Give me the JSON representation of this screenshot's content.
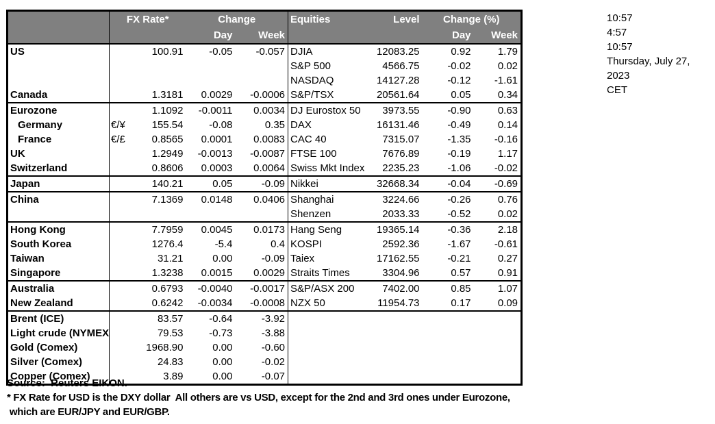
{
  "colors": {
    "header_bg": "#808080",
    "header_text": "#ffffff",
    "border": "#000000",
    "text": "#000000",
    "background": "#ffffff"
  },
  "table_header": {
    "fx_rate": "FX Rate*",
    "fx_change": "Change",
    "fx_day": "Day",
    "fx_week": "Week",
    "equities": "Equities",
    "level": "Level",
    "eq_change": "Change (%)",
    "eq_day": "Day",
    "eq_week": "Week"
  },
  "groups": [
    {
      "rows": [
        {
          "fx_label": "US",
          "fx_pair": "",
          "fx_rate": "100.91",
          "fx_day": "-0.05",
          "fx_week": "-0.057",
          "eq_label": "DJIA",
          "eq_level": "12083.25",
          "eq_day": "0.92",
          "eq_week": "1.79"
        },
        {
          "fx_label": "",
          "fx_pair": "",
          "fx_rate": "",
          "fx_day": "",
          "fx_week": "",
          "eq_label": "S&P 500",
          "eq_level": "4566.75",
          "eq_day": "-0.02",
          "eq_week": "0.02"
        },
        {
          "fx_label": "",
          "fx_pair": "",
          "fx_rate": "",
          "fx_day": "",
          "fx_week": "",
          "eq_label": "NASDAQ",
          "eq_level": "14127.28",
          "eq_day": "-0.12",
          "eq_week": "-1.61"
        },
        {
          "fx_label": "Canada",
          "fx_pair": "",
          "fx_rate": "1.3181",
          "fx_day": "0.0029",
          "fx_week": "-0.0006",
          "eq_label": "S&P/TSX",
          "eq_level": "20561.64",
          "eq_day": "0.05",
          "eq_week": "0.34"
        }
      ]
    },
    {
      "rows": [
        {
          "fx_label": "Eurozone",
          "fx_pair": "",
          "fx_rate": "1.1092",
          "fx_day": "-0.0011",
          "fx_week": "0.0034",
          "eq_label": "DJ Eurostox 50",
          "eq_level": "3973.55",
          "eq_day": "-0.90",
          "eq_week": "0.63"
        },
        {
          "fx_label": "Germany",
          "fx_indent": true,
          "fx_pair": "€/¥",
          "fx_rate": "155.54",
          "fx_day": "-0.08",
          "fx_week": "0.35",
          "eq_label": "DAX",
          "eq_level": "16131.46",
          "eq_day": "-0.49",
          "eq_week": "0.14"
        },
        {
          "fx_label": "France",
          "fx_indent": true,
          "fx_pair": "€/£",
          "fx_rate": "0.8565",
          "fx_day": "0.0001",
          "fx_week": "0.0083",
          "eq_label": "CAC 40",
          "eq_level": "7315.07",
          "eq_day": "-1.35",
          "eq_week": "-0.16"
        },
        {
          "fx_label": "UK",
          "fx_pair": "",
          "fx_rate": "1.2949",
          "fx_day": "-0.0013",
          "fx_week": "-0.0087",
          "eq_label": "FTSE 100",
          "eq_level": "7676.89",
          "eq_day": "-0.19",
          "eq_week": "1.17"
        },
        {
          "fx_label": "Switzerland",
          "fx_pair": "",
          "fx_rate": "0.8606",
          "fx_day": "0.0003",
          "fx_week": "0.0064",
          "eq_label": "Swiss Mkt Index",
          "eq_level": "2235.23",
          "eq_day": "-1.06",
          "eq_week": "-0.02"
        }
      ]
    },
    {
      "rows": [
        {
          "fx_label": "Japan",
          "fx_pair": "",
          "fx_rate": "140.21",
          "fx_day": "0.05",
          "fx_week": "-0.09",
          "eq_label": "Nikkei",
          "eq_level": "32668.34",
          "eq_day": "-0.04",
          "eq_week": "-0.69"
        }
      ]
    },
    {
      "rows": [
        {
          "fx_label": "China",
          "fx_pair": "",
          "fx_rate": "7.1369",
          "fx_day": "0.0148",
          "fx_week": "0.0406",
          "eq_label": "Shanghai",
          "eq_level": "3224.66",
          "eq_day": "-0.26",
          "eq_week": "0.76"
        },
        {
          "fx_label": "",
          "fx_pair": "",
          "fx_rate": "",
          "fx_day": "",
          "fx_week": "",
          "eq_label": "Shenzen",
          "eq_level": "2033.33",
          "eq_day": "-0.52",
          "eq_week": "0.02"
        }
      ]
    },
    {
      "rows": [
        {
          "fx_label": "Hong Kong",
          "fx_pair": "",
          "fx_rate": "7.7959",
          "fx_day": "0.0045",
          "fx_week": "0.0173",
          "eq_label": "Hang Seng",
          "eq_level": "19365.14",
          "eq_day": "-0.36",
          "eq_week": "2.18"
        },
        {
          "fx_label": "South Korea",
          "fx_pair": "",
          "fx_rate": "1276.4",
          "fx_day": "-5.4",
          "fx_week": "0.4",
          "eq_label": "KOSPI",
          "eq_level": "2592.36",
          "eq_day": "-1.67",
          "eq_week": "-0.61"
        },
        {
          "fx_label": "Taiwan",
          "fx_pair": "",
          "fx_rate": "31.21",
          "fx_day": "0.00",
          "fx_week": "-0.09",
          "eq_label": "Taiex",
          "eq_level": "17162.55",
          "eq_day": "-0.21",
          "eq_week": "0.27"
        },
        {
          "fx_label": "Singapore",
          "fx_pair": "",
          "fx_rate": "1.3238",
          "fx_day": "0.0015",
          "fx_week": "0.0029",
          "eq_label": "Straits Times",
          "eq_level": "3304.96",
          "eq_day": "0.57",
          "eq_week": "0.91"
        }
      ]
    },
    {
      "rows": [
        {
          "fx_label": "Australia",
          "fx_pair": "",
          "fx_rate": "0.6793",
          "fx_day": "-0.0040",
          "fx_week": "-0.0017",
          "eq_label": "S&P/ASX  200",
          "eq_level": "7402.00",
          "eq_day": "0.85",
          "eq_week": "1.07"
        },
        {
          "fx_label": "New Zealand",
          "fx_pair": "",
          "fx_rate": "0.6242",
          "fx_day": "-0.0034",
          "fx_week": "-0.0008",
          "eq_label": "NZX 50",
          "eq_level": "11954.73",
          "eq_day": "0.17",
          "eq_week": "0.09"
        }
      ]
    },
    {
      "rows": [
        {
          "fx_label": "Brent (ICE)",
          "fx_pair": "",
          "fx_rate": "83.57",
          "fx_day": "-0.64",
          "fx_week": "-3.92",
          "eq_label": "",
          "eq_level": "",
          "eq_day": "",
          "eq_week": ""
        },
        {
          "fx_label": "Light crude (NYMEX)",
          "fx_pair": "",
          "fx_rate": "79.53",
          "fx_day": "-0.73",
          "fx_week": "-3.88",
          "eq_label": "",
          "eq_level": "",
          "eq_day": "",
          "eq_week": ""
        },
        {
          "fx_label": "Gold (Comex)",
          "fx_pair": "",
          "fx_rate": "1968.90",
          "fx_day": "0.00",
          "fx_week": "-0.60",
          "eq_label": "",
          "eq_level": "",
          "eq_day": "",
          "eq_week": ""
        },
        {
          "fx_label": "Silver (Comex)",
          "fx_pair": "",
          "fx_rate": "24.83",
          "fx_day": "0.00",
          "fx_week": "-0.02",
          "eq_label": "",
          "eq_level": "",
          "eq_day": "",
          "eq_week": ""
        },
        {
          "fx_label": "Copper (Comex)",
          "fx_pair": "",
          "fx_rate": "3.89",
          "fx_day": "0.00",
          "fx_week": "-0.07",
          "eq_label": "",
          "eq_level": "",
          "eq_day": "",
          "eq_week": ""
        }
      ]
    }
  ],
  "timestamps": {
    "lines": [
      "10:57",
      "4:57",
      "10:57",
      "Thursday, July 27, 2023",
      "CET"
    ]
  },
  "footer": {
    "source": "Source:  Reuters EIKON.",
    "footnote_line1": "* FX Rate for USD is the DXY dollar  All others are vs USD, except for the 2nd and 3rd ones under Eurozone,",
    "footnote_line2": " which are EUR/JPY and EUR/GBP."
  }
}
